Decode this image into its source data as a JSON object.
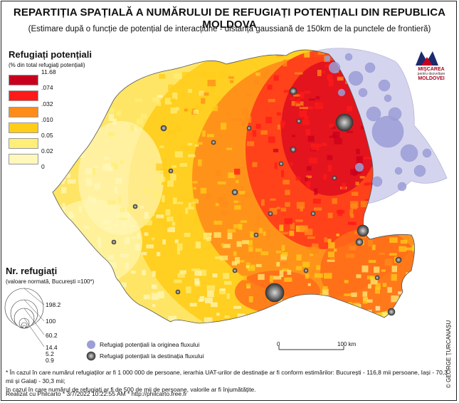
{
  "title": "REPARTIȚIA SPAȚIALĂ A NUMĂRULUI DE REFUGIAȚI POTENȚIALI DIN REPUBLICA MOLDOVA",
  "subtitle": "(Estimare după o funcție de potențial de interacțiune - distanță gaussiană de 150km de la punctele de frontieră)",
  "legend": {
    "title": "Refugiați potențiali",
    "subtitle": "(% din total refugiați potențiali)",
    "classes": [
      {
        "color": "#c8001e",
        "upper": "11.68",
        "lower": ".074"
      },
      {
        "color": "#ff1a1a",
        "upper": ".074",
        "lower": ".032"
      },
      {
        "color": "#ff8c1a",
        "upper": ".032",
        "lower": ".010"
      },
      {
        "color": "#ffcc1a",
        "upper": ".010",
        "lower": "0.05"
      },
      {
        "color": "#ffee77",
        "upper": "0.05",
        "lower": "0.02"
      },
      {
        "color": "#fff7bb",
        "upper": "0.02",
        "lower": "0"
      }
    ],
    "breaks": [
      "11.68",
      ".074",
      ".032",
      ".010",
      "0.05",
      "0.02",
      "0"
    ]
  },
  "circles_legend": {
    "title": "Nr. refugiați",
    "subtitle": "(valoare normată, București =100*)",
    "values": [
      "198.2",
      "100",
      "60.2",
      "14.4",
      "5.2",
      "0.9"
    ]
  },
  "points_legend": {
    "origin": "Refugiați potențiali la originea fluxului",
    "destination": "Refugiați potențiali la destinația fluxului",
    "origin_color": "#9c9ed8",
    "destination_color": "#555555"
  },
  "scale_bar": {
    "start": "0",
    "end": "100 km"
  },
  "logo": {
    "line1": "MIŞCAREA",
    "line2": "pentru dezvoltare",
    "line3": "MOLDOVEI"
  },
  "notes": [
    "* În cazul în care numărul refugiaților ar fi 1 000 000 de persoane, ierarhia UAT-urilor de destinație ar fi conform estimărilor: București - 116,8 mii persoane, Iași - 70,3 mii și Galați - 30,3 mii;",
    "în cazul în care numărul de refugiați ar fi de 500 de mii de persoane, valorile ar fi înjumătățite."
  ],
  "credit": "Realizat cu Philcarto * 3/7/2022 10:22:55 AM * http://philcarto.free.fr",
  "author": "© GEORGE ȚURCANAȘU"
}
